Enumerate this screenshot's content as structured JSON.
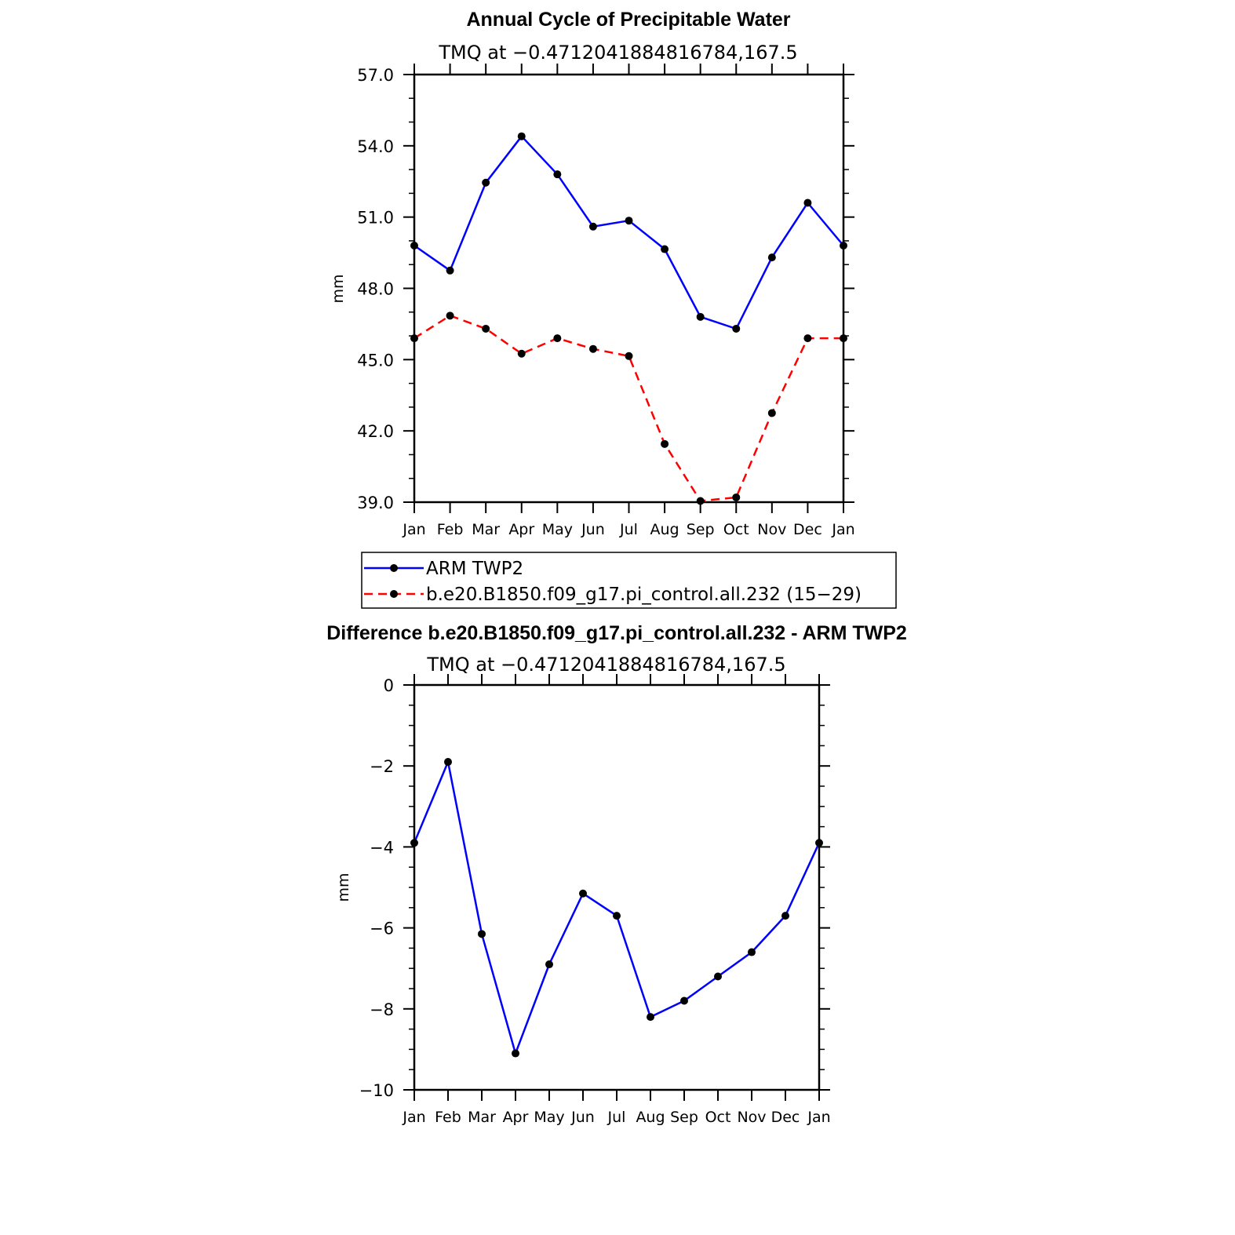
{
  "chart_data": [
    {
      "type": "line",
      "title": "Annual Cycle of Precipitable Water",
      "subtitle": "TMQ at −0.4712041884816784,167.5",
      "xlabel": "",
      "ylabel": "mm",
      "categories": [
        "Jan",
        "Feb",
        "Mar",
        "Apr",
        "May",
        "Jun",
        "Jul",
        "Aug",
        "Sep",
        "Oct",
        "Nov",
        "Dec",
        "Jan"
      ],
      "ylim": [
        39.0,
        57.0
      ],
      "yticks": [
        "39.0",
        "42.0",
        "45.0",
        "48.0",
        "51.0",
        "54.0",
        "57.0"
      ],
      "series": [
        {
          "name": "ARM TWP2",
          "color": "#0000ff",
          "style": "solid",
          "values": [
            49.8,
            48.75,
            52.45,
            54.4,
            52.8,
            50.6,
            50.85,
            49.65,
            46.8,
            46.3,
            49.3,
            51.6,
            49.8
          ]
        },
        {
          "name": "b.e20.B1850.f09_g17.pi_control.all.232 (15−29)",
          "color": "#ff0000",
          "style": "dashed",
          "values": [
            45.9,
            46.85,
            46.3,
            45.25,
            45.9,
            45.45,
            45.15,
            41.45,
            39.05,
            39.2,
            42.75,
            45.9,
            45.9
          ]
        }
      ],
      "legend": "below"
    },
    {
      "type": "line",
      "title": "Difference b.e20.B1850.f09_g17.pi_control.all.232 - ARM TWP2",
      "subtitle": "TMQ at −0.4712041884816784,167.5",
      "xlabel": "",
      "ylabel": "mm",
      "categories": [
        "Jan",
        "Feb",
        "Mar",
        "Apr",
        "May",
        "Jun",
        "Jul",
        "Aug",
        "Sep",
        "Oct",
        "Nov",
        "Dec",
        "Jan"
      ],
      "ylim": [
        -10,
        0
      ],
      "yticks": [
        "−10",
        "−8",
        "−6",
        "−4",
        "−2",
        "0"
      ],
      "series": [
        {
          "name": "Difference",
          "color": "#0000ff",
          "style": "solid",
          "values": [
            -3.9,
            -1.9,
            -6.15,
            -9.1,
            -6.9,
            -5.15,
            -5.7,
            -8.2,
            -7.8,
            -7.2,
            -6.6,
            -5.7,
            -3.9
          ]
        }
      ]
    }
  ]
}
